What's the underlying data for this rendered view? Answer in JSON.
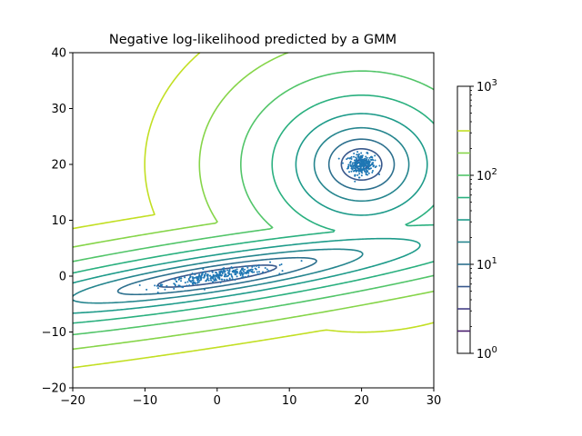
{
  "chart_data": {
    "type": "contour",
    "title": "Negative log-likelihood predicted by a GMM",
    "xlabel": "",
    "ylabel": "",
    "xlim": [
      -20,
      30
    ],
    "ylim": [
      -20,
      40
    ],
    "x_ticks": [
      "−20",
      "−10",
      "0",
      "10",
      "20",
      "30"
    ],
    "y_ticks": [
      "−20",
      "−10",
      "0",
      "10",
      "20",
      "30",
      "40"
    ],
    "colorbar": {
      "scale": "log",
      "range": [
        1,
        1000
      ],
      "tick_labels": [
        "10^0",
        "10^1",
        "10^2",
        "10^3"
      ],
      "levels": [
        1.78,
        3.16,
        5.62,
        10,
        17.8,
        31.6,
        56.2,
        100,
        178,
        316
      ],
      "level_colors": [
        "#481a6c",
        "#433e85",
        "#38588c",
        "#2d708e",
        "#25858e",
        "#1e9b8a",
        "#2ab07f",
        "#52c569",
        "#86d549",
        "#c2df23"
      ]
    },
    "grid": false,
    "components": [
      {
        "name": "",
        "mean": [
          20,
          20
        ],
        "spread": [
          1.2,
          1.2
        ],
        "kind": "spherical"
      },
      {
        "name": "",
        "mean": [
          0,
          0
        ],
        "direction": [
          1,
          0.2
        ],
        "kind": "elongated"
      }
    ],
    "scatter_clusters": [
      {
        "center": [
          20,
          20
        ],
        "sd": [
          0.9,
          0.9
        ],
        "count": 300
      },
      {
        "center": [
          0,
          0
        ],
        "direction": [
          1,
          0.2
        ],
        "sd_along": 3.8,
        "sd_across": 0.5,
        "count": 300
      }
    ],
    "point_color": "#1f77b4"
  }
}
